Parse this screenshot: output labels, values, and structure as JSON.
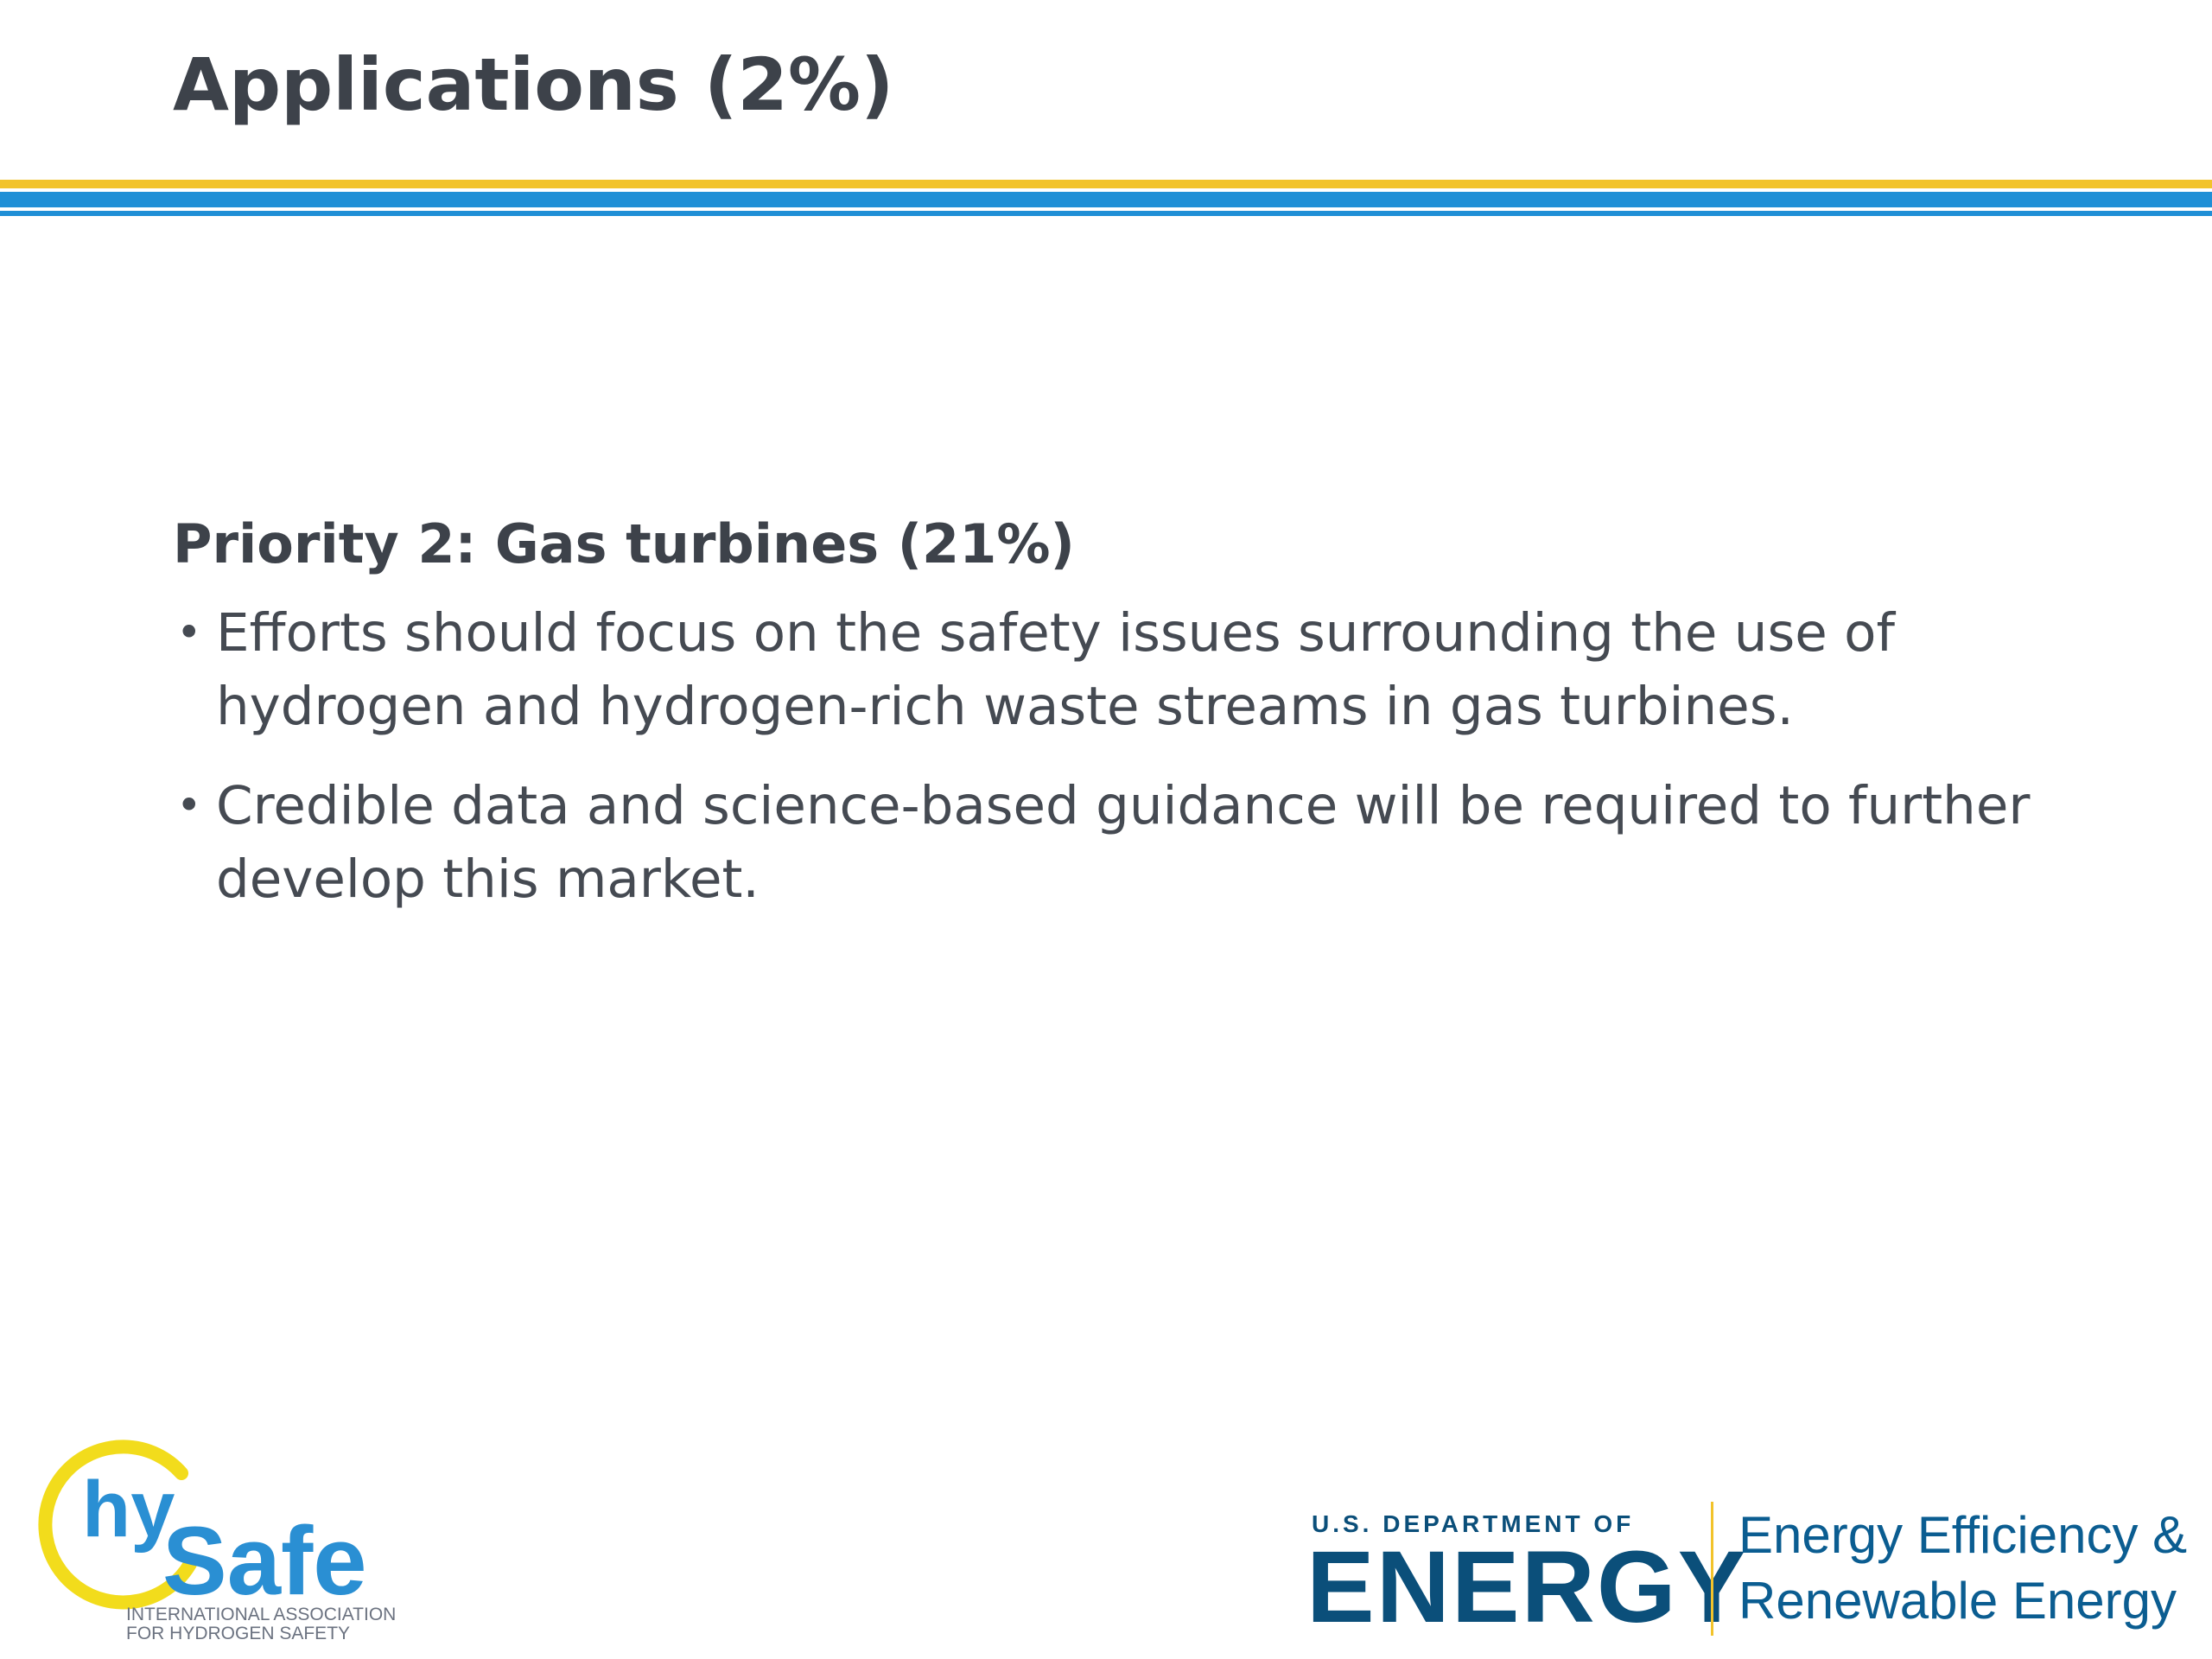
{
  "slide": {
    "title": "Applications (2%)",
    "subheading": "Priority 2: Gas turbines (21%)",
    "bullets": [
      "Efforts should focus on the safety issues surrounding the use of hydrogen and hydrogen-rich waste streams in gas turbines.",
      "Credible data and science-based guidance will be required to further develop this market."
    ]
  },
  "footer": {
    "hysafe": {
      "logo_text_hy": "hy",
      "logo_text_safe": "Safe",
      "tagline_line1": "INTERNATIONAL ASSOCIATION",
      "tagline_line2": "FOR HYDROGEN SAFETY"
    },
    "doe": {
      "top_line": "U.S. DEPARTMENT OF",
      "wordmark": "ENERGY",
      "eere_line1": "Energy Efficiency &",
      "eere_line2": "Renewable Energy"
    }
  },
  "colors": {
    "title_text": "#3d424a",
    "body_text": "#454a52",
    "rule_yellow": "#f2c32b",
    "rule_blue": "#1f8fd6",
    "doe_blue": "#0b4f7a",
    "hysafe_yellow": "#f2dc1c",
    "hysafe_blue": "#2a8fd3"
  }
}
